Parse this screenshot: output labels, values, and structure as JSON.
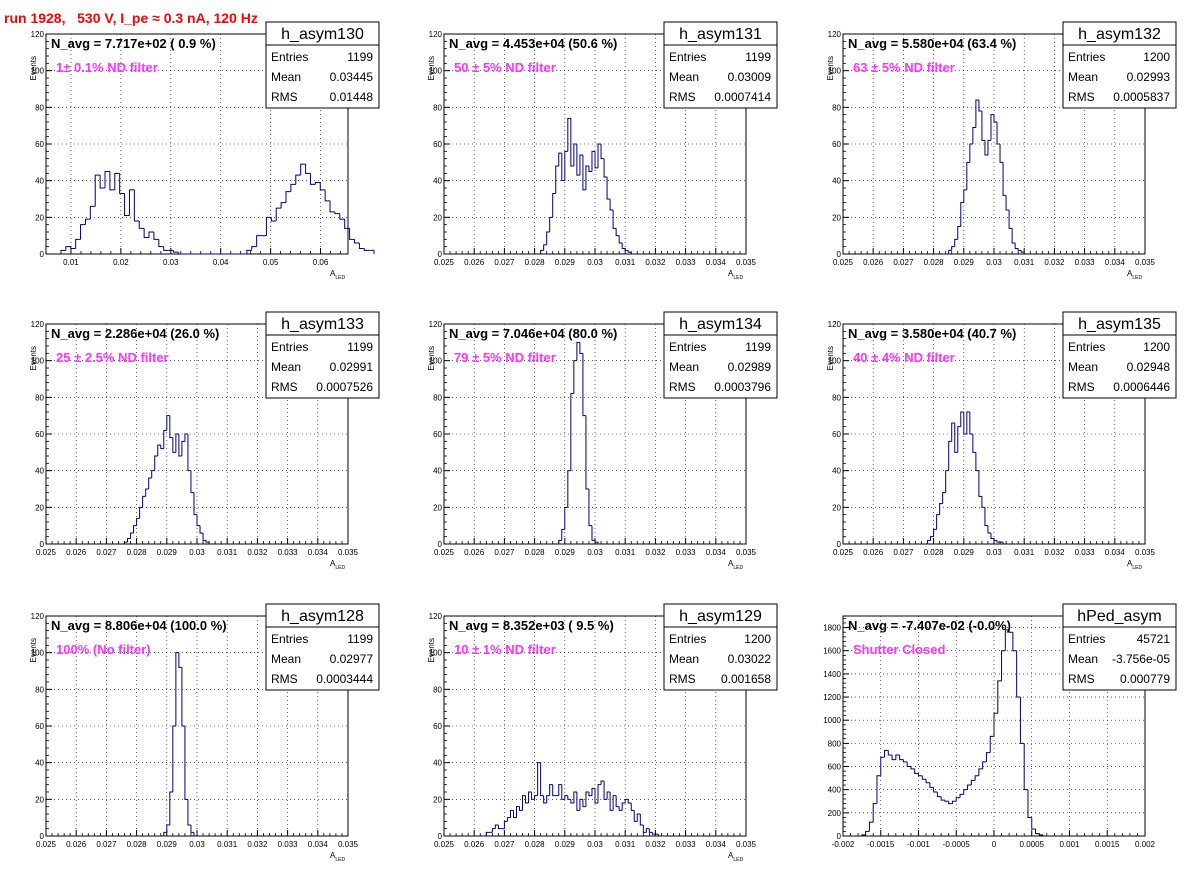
{
  "page": {
    "run_title": "run 1928,   530 V, I_pe ≈ 0.3 nA, 120 Hz",
    "colors": {
      "title": "#ff0000",
      "hist": "#000080",
      "annotation": "#ff33ff",
      "grid": "#000000"
    }
  },
  "chart_data": [
    {
      "type": "bar",
      "name": "h_asym130",
      "annotation": "N_avg = 7.717e+02 ( 0.9 %)",
      "filter_label": "1± 0.1% ND filter",
      "stats": [
        {
          "key": "Entries",
          "value": "1199"
        },
        {
          "key": "Mean",
          "value": "0.03445"
        },
        {
          "key": "RMS",
          "value": "0.01448"
        }
      ],
      "ylabel": "Events",
      "xlabel": "A",
      "xlabel_sub": "LED",
      "xlim": [
        0.005,
        0.0655
      ],
      "ylim": [
        0,
        120
      ],
      "xticks": [
        0.01,
        0.02,
        0.03,
        0.04,
        0.05,
        0.06
      ],
      "xtick_labels": [
        "0.01",
        "0.02",
        "0.03",
        "0.04",
        "0.05",
        "0.06"
      ],
      "yticks": [
        0,
        20,
        40,
        60,
        80,
        100,
        120
      ],
      "bins": {
        "x0": 0.008,
        "width": 0.00098,
        "values": [
          2,
          4,
          3,
          8,
          16,
          19,
          26,
          43,
          36,
          45,
          35,
          44,
          33,
          21,
          35,
          18,
          14,
          9,
          12,
          8,
          4,
          2,
          2,
          1,
          0,
          0,
          0,
          0,
          0,
          0,
          0,
          0,
          0,
          0,
          0,
          0,
          0,
          0,
          2,
          4,
          10,
          10,
          20,
          18,
          25,
          28,
          34,
          38,
          43,
          49,
          44,
          38,
          39,
          35,
          29,
          23,
          22,
          19,
          14,
          8,
          6,
          3,
          2,
          2
        ]
      }
    },
    {
      "type": "bar",
      "name": "h_asym131",
      "annotation": "N_avg = 4.453e+04 (50.6 %)",
      "filter_label": "50 ± 5% ND filter",
      "stats": [
        {
          "key": "Entries",
          "value": "1199"
        },
        {
          "key": "Mean",
          "value": "0.03009"
        },
        {
          "key": "RMS",
          "value": "0.0007414"
        }
      ],
      "ylabel": "Events",
      "xlabel": "A",
      "xlabel_sub": "LED",
      "xlim": [
        0.025,
        0.035
      ],
      "ylim": [
        0,
        120
      ],
      "xticks": [
        0.025,
        0.026,
        0.027,
        0.028,
        0.029,
        0.03,
        0.031,
        0.032,
        0.033,
        0.034,
        0.035
      ],
      "xtick_labels": [
        "0.025",
        "0.026",
        "0.027",
        "0.028",
        "0.029",
        "0.03",
        "0.031",
        "0.032",
        "0.033",
        "0.034",
        "0.035"
      ],
      "yticks": [
        0,
        20,
        40,
        60,
        80,
        100,
        120
      ],
      "bins": {
        "x0": 0.0282,
        "width": 0.0001,
        "values": [
          2,
          5,
          12,
          20,
          33,
          48,
          55,
          40,
          56,
          74,
          48,
          60,
          43,
          54,
          35,
          48,
          45,
          56,
          47,
          60,
          52,
          42,
          30,
          24,
          14,
          10,
          6,
          3,
          2,
          1
        ]
      }
    },
    {
      "type": "bar",
      "name": "h_asym132",
      "annotation": "N_avg = 5.580e+04 (63.4 %)",
      "filter_label": "63 ± 5% ND filter",
      "stats": [
        {
          "key": "Entries",
          "value": "1200"
        },
        {
          "key": "Mean",
          "value": "0.02993"
        },
        {
          "key": "RMS",
          "value": "0.0005837"
        }
      ],
      "ylabel": "Events",
      "xlabel": "A",
      "xlabel_sub": "LED",
      "xlim": [
        0.025,
        0.035
      ],
      "ylim": [
        0,
        120
      ],
      "xticks": [
        0.025,
        0.026,
        0.027,
        0.028,
        0.029,
        0.03,
        0.031,
        0.032,
        0.033,
        0.034,
        0.035
      ],
      "xtick_labels": [
        "0.025",
        "0.026",
        "0.027",
        "0.028",
        "0.029",
        "0.03",
        "0.031",
        "0.032",
        "0.033",
        "0.034",
        "0.035"
      ],
      "yticks": [
        0,
        20,
        40,
        60,
        80,
        100,
        120
      ],
      "bins": {
        "x0": 0.0285,
        "width": 0.0001,
        "values": [
          2,
          4,
          8,
          15,
          28,
          35,
          50,
          60,
          69,
          84,
          78,
          62,
          54,
          62,
          76,
          72,
          60,
          50,
          32,
          24,
          14,
          6,
          3,
          2,
          1
        ]
      }
    },
    {
      "type": "bar",
      "name": "h_asym133",
      "annotation": "N_avg = 2.286e+04 (26.0 %)",
      "filter_label": "25 ± 2.5% ND filter",
      "stats": [
        {
          "key": "Entries",
          "value": "1199"
        },
        {
          "key": "Mean",
          "value": "0.02991"
        },
        {
          "key": "RMS",
          "value": "0.0007526"
        }
      ],
      "ylabel": "Events",
      "xlabel": "A",
      "xlabel_sub": "LED",
      "xlim": [
        0.025,
        0.035
      ],
      "ylim": [
        0,
        120
      ],
      "xticks": [
        0.025,
        0.026,
        0.027,
        0.028,
        0.029,
        0.03,
        0.031,
        0.032,
        0.033,
        0.034,
        0.035
      ],
      "xtick_labels": [
        "0.025",
        "0.026",
        "0.027",
        "0.028",
        "0.029",
        "0.03",
        "0.031",
        "0.032",
        "0.033",
        "0.034",
        "0.035"
      ],
      "yticks": [
        0,
        20,
        40,
        60,
        80,
        100,
        120
      ],
      "bins": {
        "x0": 0.0276,
        "width": 0.0001,
        "values": [
          1,
          3,
          6,
          10,
          14,
          20,
          26,
          30,
          36,
          40,
          48,
          54,
          52,
          62,
          70,
          58,
          50,
          60,
          48,
          56,
          60,
          40,
          28,
          16,
          10,
          6,
          2,
          1
        ]
      }
    },
    {
      "type": "bar",
      "name": "h_asym134",
      "annotation": "N_avg = 7.046e+04 (80.0 %)",
      "filter_label": "79 ± 5% ND filter",
      "stats": [
        {
          "key": "Entries",
          "value": "1199"
        },
        {
          "key": "Mean",
          "value": "0.02989"
        },
        {
          "key": "RMS",
          "value": "0.0003796"
        }
      ],
      "ylabel": "Events",
      "xlabel": "A",
      "xlabel_sub": "LED",
      "xlim": [
        0.025,
        0.035
      ],
      "ylim": [
        0,
        120
      ],
      "xticks": [
        0.025,
        0.026,
        0.027,
        0.028,
        0.029,
        0.03,
        0.031,
        0.032,
        0.033,
        0.034,
        0.035
      ],
      "xtick_labels": [
        "0.025",
        "0.026",
        "0.027",
        "0.028",
        "0.029",
        "0.03",
        "0.031",
        "0.032",
        "0.033",
        "0.034",
        "0.035"
      ],
      "yticks": [
        0,
        20,
        40,
        60,
        80,
        100,
        120
      ],
      "bins": {
        "x0": 0.0288,
        "width": 0.0001,
        "values": [
          2,
          8,
          20,
          40,
          82,
          100,
          110,
          104,
          70,
          30,
          10,
          2,
          1
        ]
      }
    },
    {
      "type": "bar",
      "name": "h_asym135",
      "annotation": "N_avg = 3.580e+04 (40.7 %)",
      "filter_label": "40 ± 4% ND filter",
      "stats": [
        {
          "key": "Entries",
          "value": "1200"
        },
        {
          "key": "Mean",
          "value": "0.02948"
        },
        {
          "key": "RMS",
          "value": "0.0006446"
        }
      ],
      "ylabel": "Events",
      "xlabel": "A",
      "xlabel_sub": "LED",
      "xlim": [
        0.025,
        0.035
      ],
      "ylim": [
        0,
        120
      ],
      "xticks": [
        0.025,
        0.026,
        0.027,
        0.028,
        0.029,
        0.03,
        0.031,
        0.032,
        0.033,
        0.034,
        0.035
      ],
      "xtick_labels": [
        "0.025",
        "0.026",
        "0.027",
        "0.028",
        "0.029",
        "0.03",
        "0.031",
        "0.032",
        "0.033",
        "0.034",
        "0.035"
      ],
      "yticks": [
        0,
        20,
        40,
        60,
        80,
        100,
        120
      ],
      "bins": {
        "x0": 0.0278,
        "width": 0.0001,
        "values": [
          2,
          4,
          8,
          16,
          22,
          28,
          40,
          56,
          66,
          50,
          64,
          72,
          60,
          72,
          60,
          50,
          40,
          26,
          20,
          10,
          6,
          3,
          2,
          1,
          1
        ]
      }
    },
    {
      "type": "bar",
      "name": "h_asym128",
      "annotation": "N_avg = 8.806e+04 (100.0 %)",
      "filter_label": "100% (No filter)",
      "stats": [
        {
          "key": "Entries",
          "value": "1199"
        },
        {
          "key": "Mean",
          "value": "0.02977"
        },
        {
          "key": "RMS",
          "value": "0.0003444"
        }
      ],
      "ylabel": "Events",
      "xlabel": "A",
      "xlabel_sub": "LED",
      "xlim": [
        0.025,
        0.035
      ],
      "ylim": [
        0,
        120
      ],
      "xticks": [
        0.025,
        0.026,
        0.027,
        0.028,
        0.029,
        0.03,
        0.031,
        0.032,
        0.033,
        0.034,
        0.035
      ],
      "xtick_labels": [
        "0.025",
        "0.026",
        "0.027",
        "0.028",
        "0.029",
        "0.03",
        "0.031",
        "0.032",
        "0.033",
        "0.034",
        "0.035"
      ],
      "yticks": [
        0,
        20,
        40,
        60,
        80,
        100,
        120
      ],
      "bins": {
        "x0": 0.0289,
        "width": 0.0001,
        "values": [
          2,
          6,
          24,
          60,
          100,
          92,
          60,
          20,
          6,
          2
        ]
      }
    },
    {
      "type": "bar",
      "name": "h_asym129",
      "annotation": "N_avg = 8.352e+03 ( 9.5 %)",
      "filter_label": "10 ± 1% ND filter",
      "stats": [
        {
          "key": "Entries",
          "value": "1200"
        },
        {
          "key": "Mean",
          "value": "0.03022"
        },
        {
          "key": "RMS",
          "value": "0.001658"
        }
      ],
      "ylabel": "Events",
      "xlabel": "A",
      "xlabel_sub": "LED",
      "xlim": [
        0.025,
        0.035
      ],
      "ylim": [
        0,
        120
      ],
      "xticks": [
        0.025,
        0.026,
        0.027,
        0.028,
        0.029,
        0.03,
        0.031,
        0.032,
        0.033,
        0.034,
        0.035
      ],
      "xtick_labels": [
        "0.025",
        "0.026",
        "0.027",
        "0.028",
        "0.029",
        "0.03",
        "0.031",
        "0.032",
        "0.033",
        "0.034",
        "0.035"
      ],
      "yticks": [
        0,
        20,
        40,
        60,
        80,
        100,
        120
      ],
      "bins": {
        "x0": 0.0264,
        "width": 0.0001,
        "values": [
          2,
          2,
          4,
          6,
          4,
          4,
          8,
          10,
          14,
          10,
          16,
          14,
          22,
          18,
          24,
          20,
          22,
          40,
          22,
          18,
          22,
          28,
          22,
          22,
          28,
          20,
          22,
          20,
          18,
          24,
          14,
          20,
          16,
          24,
          22,
          26,
          18,
          28,
          30,
          20,
          24,
          14,
          22,
          16,
          14,
          18,
          20,
          18,
          14,
          8,
          12,
          6,
          2,
          4,
          2,
          1,
          1
        ]
      }
    },
    {
      "type": "bar",
      "name": "hPed_asym",
      "annotation": "N_avg = -7.407e-02 (-0.0%)",
      "filter_label": "Shutter Closed",
      "stats": [
        {
          "key": "Entries",
          "value": "45721"
        },
        {
          "key": "Mean",
          "value": "-3.756e-05"
        },
        {
          "key": "RMS",
          "value": "0.000779"
        }
      ],
      "ylabel": "",
      "xlabel": "",
      "xlabel_sub": "",
      "xlim": [
        -0.002,
        0.002
      ],
      "ylim": [
        0,
        1900
      ],
      "xticks": [
        -0.002,
        -0.0015,
        -0.001,
        -0.0005,
        0,
        0.0005,
        0.001,
        0.0015,
        0.002
      ],
      "xtick_labels": [
        "-0.002",
        "-0.0015",
        "-0.001",
        "-0.0005",
        "0",
        "0.0005",
        "0.001",
        "0.0015",
        "0.002"
      ],
      "yticks": [
        0,
        200,
        400,
        600,
        800,
        1000,
        1200,
        1400,
        1600,
        1800
      ],
      "bins": {
        "x0": -0.00175,
        "width": 5e-05,
        "values": [
          10,
          40,
          120,
          280,
          520,
          680,
          740,
          700,
          660,
          700,
          660,
          640,
          600,
          580,
          540,
          520,
          490,
          460,
          420,
          380,
          340,
          310,
          300,
          280,
          300,
          330,
          360,
          400,
          440,
          480,
          520,
          580,
          640,
          720,
          860,
          1060,
          1340,
          1600,
          1780,
          1760,
          1600,
          1200,
          800,
          400,
          160,
          60,
          20,
          10
        ]
      }
    }
  ]
}
